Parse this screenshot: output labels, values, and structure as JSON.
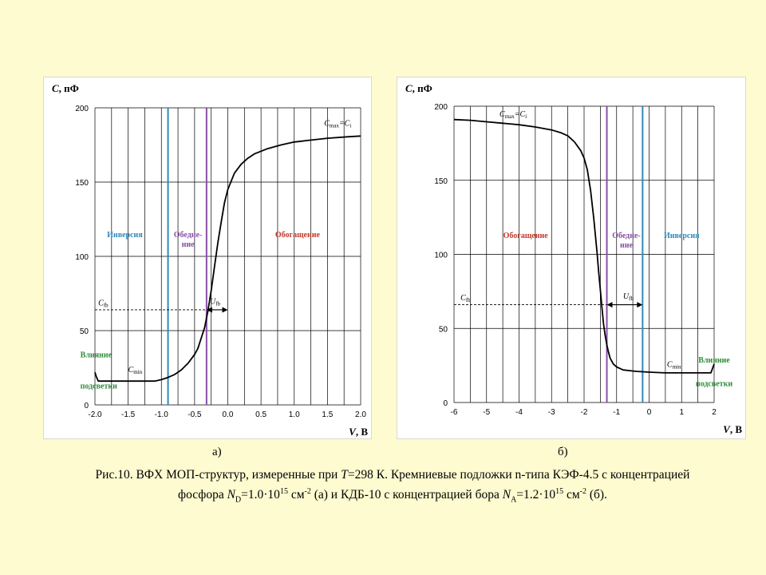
{
  "chart_data": [
    {
      "type": "line",
      "panel_label": "а)",
      "ylabel_var": "C",
      "ylabel_unit": ", пФ",
      "xlabel_var": "V",
      "xlabel_unit": ", В",
      "xlim": [
        -2.0,
        2.0
      ],
      "ylim": [
        0,
        200
      ],
      "xticks": [
        "-2.0",
        "-1.5",
        "-1.0",
        "-0.5",
        "0.0",
        "0.5",
        "1.0",
        "1.5",
        "2.0"
      ],
      "xtick_values": [
        -2.0,
        -1.5,
        -1.0,
        -0.5,
        0.0,
        0.5,
        1.0,
        1.5,
        2.0
      ],
      "yticks": [
        "0",
        "50",
        "100",
        "150",
        "200"
      ],
      "ytick_values": [
        0,
        50,
        100,
        150,
        200
      ],
      "vertical_grid": [
        -2.0,
        -1.75,
        -1.5,
        -1.25,
        -1.0,
        -0.75,
        -0.5,
        -0.25,
        0.0,
        0.25,
        0.5,
        0.75,
        1.0,
        1.25,
        1.5,
        1.75,
        2.0
      ],
      "horizontal_grid": [
        0,
        50,
        100,
        150,
        200
      ],
      "grid": true,
      "series": [
        {
          "x": [
            -2.0,
            -1.98,
            -1.95,
            -1.9,
            -1.7,
            -1.5,
            -1.3,
            -1.1,
            -1.0,
            -0.9,
            -0.8,
            -0.7,
            -0.6,
            -0.5,
            -0.45,
            -0.4,
            -0.35,
            -0.3,
            -0.25,
            -0.2,
            -0.15,
            -0.1,
            -0.05,
            0.0,
            0.1,
            0.2,
            0.3,
            0.4,
            0.6,
            0.8,
            1.0,
            1.2,
            1.5,
            1.8,
            2.0
          ],
          "values": [
            22,
            19,
            16,
            16,
            16,
            16,
            16,
            16,
            17,
            18.5,
            20.5,
            23.5,
            28,
            34,
            38,
            45,
            52,
            63,
            77,
            93,
            109,
            123,
            136,
            145,
            156,
            162,
            166,
            169,
            172.5,
            175,
            177,
            178,
            179.5,
            180.5,
            181
          ]
        }
      ],
      "vlines": [
        {
          "x": -0.9,
          "color": "#2e8ab8"
        },
        {
          "x": -0.32,
          "color": "#8a4fa3"
        }
      ],
      "cfb_value": 64,
      "ufb_range": [
        -0.32,
        0.0
      ],
      "regions": [
        {
          "lines": [
            "Инверсия"
          ],
          "x": -1.55,
          "y": 113,
          "color": "#2e8ab8"
        },
        {
          "lines": [
            "Обедне-",
            "ние"
          ],
          "x": -0.6,
          "y": 113,
          "color": "#8a4fa3"
        },
        {
          "lines": [
            "Обогащение"
          ],
          "x": 1.05,
          "y": 113,
          "color": "#c0392b"
        },
        {
          "lines": [
            "Влияние"
          ],
          "x": -1.98,
          "y": 32,
          "color": "#2e8b3a"
        },
        {
          "lines": [
            "подсветки"
          ],
          "x": -1.98,
          "y": 11,
          "color": "#2e8b3a"
        }
      ],
      "annotations": {
        "cmax_main": "C",
        "cmax_sub": "max",
        "cmax_eq": "=C",
        "cmax_sub2": "i",
        "cmax_pos": [
          1.45,
          188
        ],
        "cfb_main": "C",
        "cfb_sub": "fb",
        "cfb_pos": [
          -1.95,
          67
        ],
        "ufb_main": "U",
        "ufb_sub": "fb",
        "ufb_pos": [
          -0.27,
          68
        ],
        "cmin_main": "C",
        "cmin_sub": "min",
        "cmin_pos": [
          -1.5,
          22
        ]
      }
    },
    {
      "type": "line",
      "panel_label": "б)",
      "ylabel_var": "C",
      "ylabel_unit": ", пФ",
      "xlabel_var": "V",
      "xlabel_unit": ", В",
      "xlim": [
        -6,
        2
      ],
      "ylim": [
        0,
        200
      ],
      "xticks": [
        "-6",
        "-5",
        "-4",
        "-3",
        "-2",
        "-1",
        "0",
        "1",
        "2"
      ],
      "xtick_values": [
        -6,
        -5,
        -4,
        -3,
        -2,
        -1,
        0,
        1,
        2
      ],
      "yticks": [
        "0",
        "50",
        "100",
        "150",
        "200"
      ],
      "ytick_values": [
        0,
        50,
        100,
        150,
        200
      ],
      "vertical_grid": [
        -6,
        -5.5,
        -5,
        -4.5,
        -4,
        -3.5,
        -3,
        -2.5,
        -2,
        -1.5,
        -1,
        -0.5,
        0,
        0.5,
        1,
        1.5,
        2
      ],
      "horizontal_grid": [
        0,
        50,
        100,
        150,
        200
      ],
      "grid": true,
      "series": [
        {
          "x": [
            -6.0,
            -5.5,
            -5.0,
            -4.5,
            -4.0,
            -3.5,
            -3.0,
            -2.7,
            -2.5,
            -2.3,
            -2.1,
            -2.0,
            -1.9,
            -1.8,
            -1.7,
            -1.6,
            -1.55,
            -1.5,
            -1.45,
            -1.4,
            -1.35,
            -1.3,
            -1.25,
            -1.2,
            -1.1,
            -1.0,
            -0.9,
            -0.8,
            -0.6,
            -0.4,
            0.0,
            0.5,
            1.0,
            1.5,
            1.9,
            1.95,
            2.0
          ],
          "values": [
            191,
            190.5,
            189.5,
            188.5,
            187.5,
            186,
            184,
            182,
            180,
            176,
            170,
            165,
            157,
            143,
            124,
            101,
            88,
            76,
            64,
            53,
            45,
            39,
            34,
            30,
            26,
            24,
            23,
            22,
            21.5,
            21,
            20.5,
            20,
            20,
            20,
            20,
            23,
            26
          ]
        }
      ],
      "vlines": [
        {
          "x": -1.3,
          "color": "#8a4fa3"
        },
        {
          "x": -0.2,
          "color": "#2e8ab8"
        }
      ],
      "cfb_value": 66,
      "ufb_range": [
        -1.3,
        -0.2
      ],
      "regions": [
        {
          "lines": [
            "Обогащение"
          ],
          "x": -3.8,
          "y": 111,
          "color": "#c0392b"
        },
        {
          "lines": [
            "Обедне-",
            "ние"
          ],
          "x": -0.7,
          "y": 111,
          "color": "#8a4fa3"
        },
        {
          "lines": [
            "Инверсия"
          ],
          "x": 1.0,
          "y": 111,
          "color": "#2e8ab8"
        },
        {
          "lines": [
            "Влияние"
          ],
          "x": 2.0,
          "y": 27,
          "color": "#2e8b3a"
        },
        {
          "lines": [
            "подсветки"
          ],
          "x": 2.0,
          "y": 11,
          "color": "#2e8b3a"
        }
      ],
      "annotations": {
        "cmax_main": "C",
        "cmax_sub": "max",
        "cmax_eq": "=C",
        "cmax_sub2": "i",
        "cmax_pos": [
          -4.6,
          193
        ],
        "cfb_main": "C",
        "cfb_sub": "fb",
        "cfb_pos": [
          -5.8,
          69
        ],
        "ufb_main": "U",
        "ufb_sub": "fb",
        "ufb_pos": [
          -0.8,
          70
        ],
        "cmin_main": "C",
        "cmin_sub": "min",
        "cmin_pos": [
          0.55,
          24
        ]
      }
    }
  ],
  "caption": {
    "line1": [
      {
        "t": "Рис.10. ВФХ МОП-структур, измеренные при "
      },
      {
        "t": "T",
        "i": true
      },
      {
        "t": "=298 К. Кремниевые подложки n-типа КЭФ-4.5 с концентрацией"
      }
    ],
    "line2": [
      {
        "t": "фосфора "
      },
      {
        "t": "N",
        "i": true
      },
      {
        "t": "D",
        "sub": true
      },
      {
        "t": "=1.0·10"
      },
      {
        "t": "15",
        "sup": true
      },
      {
        "t": " см"
      },
      {
        "t": "-2",
        "sup": true
      },
      {
        "t": " (а) и КДБ-10 с концентрацией бора "
      },
      {
        "t": "N",
        "i": true
      },
      {
        "t": "A",
        "sub": true
      },
      {
        "t": "=1.2·10"
      },
      {
        "t": "15",
        "sup": true
      },
      {
        "t": " см"
      },
      {
        "t": "-2",
        "sup": true
      },
      {
        "t": " (б)."
      }
    ]
  },
  "colors": {
    "background": "#fffbd0",
    "inversion": "#2e8ab8",
    "depletion": "#8a4fa3",
    "accumulation": "#c0392b",
    "illumination": "#2e8b3a",
    "curve": "#000000"
  }
}
